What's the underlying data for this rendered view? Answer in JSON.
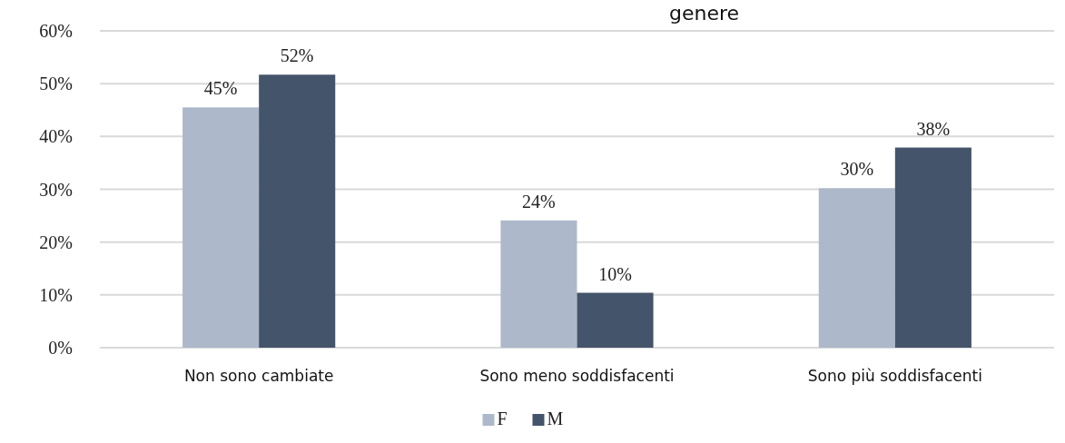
{
  "chart_data": {
    "type": "bar",
    "title": "genere",
    "categories": [
      "Non sono cambiate",
      "Sono meno soddisfacenti",
      "Sono più soddisfacenti"
    ],
    "series": [
      {
        "name": "F",
        "color": "#adb9ca",
        "values": [
          45.5,
          24.1,
          30.2
        ],
        "value_labels": [
          "45%",
          "24%",
          "30%"
        ]
      },
      {
        "name": "M",
        "color": "#44546a",
        "values": [
          51.7,
          10.4,
          37.9
        ],
        "value_labels": [
          "52%",
          "10%",
          "38%"
        ]
      }
    ],
    "ylim": [
      0,
      60
    ],
    "yticks": [
      {
        "value": 0,
        "label": "0%"
      },
      {
        "value": 10,
        "label": "10%"
      },
      {
        "value": 20,
        "label": "20%"
      },
      {
        "value": 30,
        "label": "30%"
      },
      {
        "value": 40,
        "label": "40%"
      },
      {
        "value": 50,
        "label": "50%"
      },
      {
        "value": 60,
        "label": "60%"
      }
    ],
    "grid": "y",
    "legend": "bottom"
  }
}
